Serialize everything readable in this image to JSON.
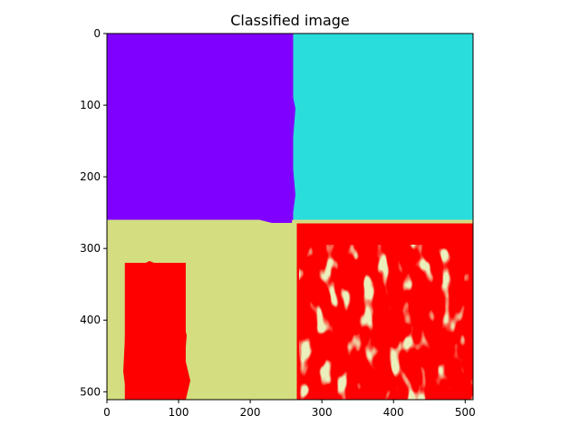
{
  "chart_data": {
    "type": "heatmap",
    "title": "Classified image",
    "xlabel": "",
    "ylabel": "",
    "xlim": [
      0,
      511
    ],
    "ylim": [
      511,
      0
    ],
    "x_ticks": [
      0,
      100,
      200,
      300,
      400,
      500
    ],
    "y_ticks": [
      0,
      100,
      200,
      300,
      400,
      500
    ],
    "grid": false,
    "legend": "none",
    "classes": [
      {
        "color": "#8000ff"
      },
      {
        "color": "#2adddd"
      },
      {
        "color": "#d4dd80"
      },
      {
        "color": "#ff0000"
      }
    ],
    "regions": [
      {
        "class": 0,
        "x_range": [
          0,
          260
        ],
        "y_range": [
          0,
          260
        ]
      },
      {
        "class": 1,
        "x_range": [
          260,
          511
        ],
        "y_range": [
          0,
          260
        ]
      },
      {
        "class": 2,
        "x_range": [
          0,
          511
        ],
        "y_range": [
          260,
          511
        ]
      },
      {
        "class": 3,
        "x_range": [
          265,
          511
        ],
        "y_range": [
          265,
          511
        ]
      },
      {
        "class": 3,
        "x_range": [
          25,
          110
        ],
        "y_range": [
          320,
          511
        ]
      }
    ]
  }
}
